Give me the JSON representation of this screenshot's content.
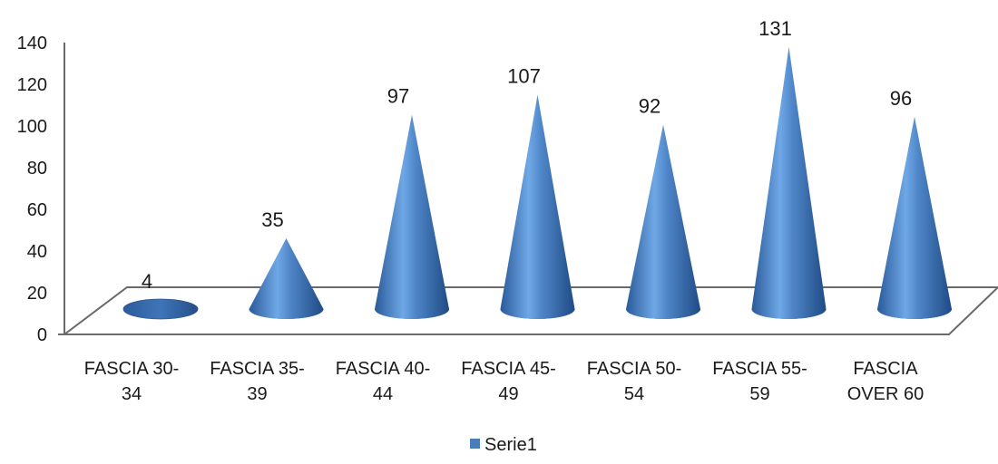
{
  "chart_data": {
    "type": "bar",
    "style": "3d-cone",
    "categories": [
      [
        "FASCIA 30-",
        "34"
      ],
      [
        "FASCIA 35-",
        "39"
      ],
      [
        "FASCIA 40-",
        "44"
      ],
      [
        "FASCIA 45-",
        "49"
      ],
      [
        "FASCIA 50-",
        "54"
      ],
      [
        "FASCIA 55-",
        "59"
      ],
      [
        "FASCIA",
        "OVER 60"
      ]
    ],
    "series": [
      {
        "name": "Serie1",
        "values": [
          4,
          35,
          97,
          107,
          92,
          131,
          96
        ],
        "color": "#4a7ebb"
      }
    ],
    "value_labels": [
      "4",
      "35",
      "97",
      "107",
      "92",
      "131",
      "96"
    ],
    "yticks": [
      "0",
      "20",
      "40",
      "60",
      "80",
      "100",
      "120",
      "140"
    ],
    "ylim": [
      0,
      140
    ],
    "grid": false,
    "legend_position": "bottom"
  }
}
